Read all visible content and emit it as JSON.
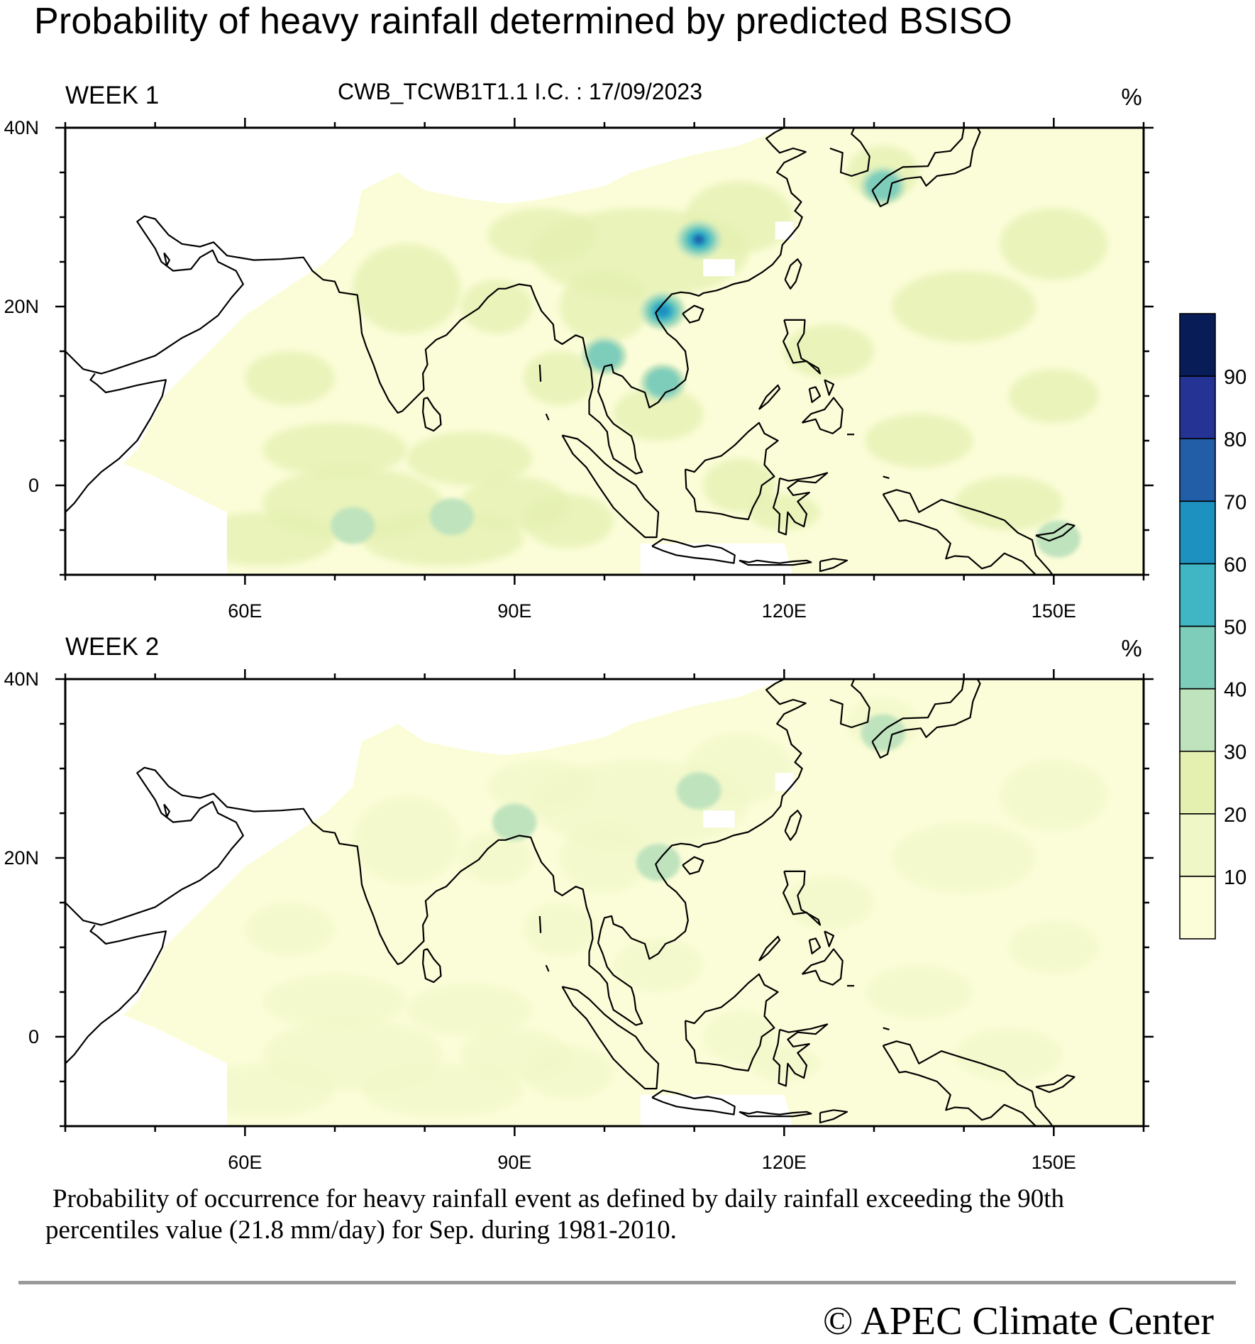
{
  "title": "Probability of heavy rainfall determined by predicted BSISO",
  "model_info": "CWB_TCWB1T1.1  I.C. : 17/09/2023",
  "unit": "%",
  "panels": [
    {
      "label": "WEEK 1",
      "hotspots": [
        {
          "name": "north-vietnam",
          "lon": 106.5,
          "lat": 19.5,
          "value": 65
        },
        {
          "name": "south-china",
          "lon": 110.5,
          "lat": 27.5,
          "value": 70
        },
        {
          "name": "japan",
          "lon": 131.0,
          "lat": 33.5,
          "value": 45
        },
        {
          "name": "andaman",
          "lon": 100.0,
          "lat": 14.5,
          "value": 45
        },
        {
          "name": "mekong",
          "lon": 106.5,
          "lat": 11.5,
          "value": 45
        },
        {
          "name": "eq-io-west",
          "lon": 72.0,
          "lat": -4.5,
          "value": 35
        },
        {
          "name": "eq-io-mid",
          "lon": 83.0,
          "lat": -3.5,
          "value": 35
        },
        {
          "name": "new-guinea-east",
          "lon": 150.5,
          "lat": -6.0,
          "value": 35
        }
      ]
    },
    {
      "label": "WEEK 2",
      "hotspots": [
        {
          "name": "north-vietnam",
          "lon": 106.0,
          "lat": 19.5,
          "value": 35
        },
        {
          "name": "south-china",
          "lon": 110.5,
          "lat": 27.5,
          "value": 35
        },
        {
          "name": "japan",
          "lon": 131.0,
          "lat": 34.0,
          "value": 35
        },
        {
          "name": "tibet-edge",
          "lon": 90.0,
          "lat": 24.0,
          "value": 30
        },
        {
          "name": "andaman",
          "lon": 100.0,
          "lat": 14.0,
          "value": 28
        }
      ]
    }
  ],
  "map": {
    "lon_range": [
      40,
      160
    ],
    "lat_range": [
      -10,
      40
    ],
    "lon_ticks": [
      {
        "value": 60,
        "label": "60E"
      },
      {
        "value": 90,
        "label": "90E"
      },
      {
        "value": 120,
        "label": "120E"
      },
      {
        "value": 150,
        "label": "150E"
      }
    ],
    "lat_ticks": [
      {
        "value": 40,
        "label": "40N"
      },
      {
        "value": 20,
        "label": "20N"
      },
      {
        "value": 0,
        "label": "0"
      }
    ]
  },
  "colorbar": {
    "levels": [
      10,
      20,
      30,
      40,
      50,
      60,
      70,
      80,
      90
    ],
    "labels": [
      "10",
      "20",
      "30",
      "40",
      "50",
      "60",
      "70",
      "80",
      "90"
    ],
    "colors": [
      "#fbfdd8",
      "#f0f7c6",
      "#e4f0b0",
      "#bfe3bd",
      "#7ecdbb",
      "#40b5c4",
      "#1d91c0",
      "#225ea8",
      "#253494",
      "#081d58"
    ]
  },
  "caption": {
    "line1": "Probability of occurrence for heavy rainfall event as defined by daily rainfall exceeding the 90th",
    "line2": "percentiles value (21.8 mm/day) for Sep. during 1981-2010."
  },
  "copyright": "©  APEC Climate Center"
}
